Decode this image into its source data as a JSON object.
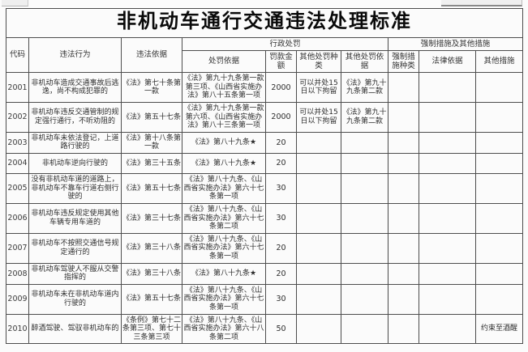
{
  "title": "非机动车通行交通违法处理标准",
  "header": {
    "code": "代码",
    "violation": "违法行为",
    "violation_basis": "违法依据",
    "admin_penalty_group": "行政处罚",
    "enforcement_group": "强制措施及其他措施",
    "penalty_basis": "处罚依据",
    "fine_amount": "罚款金额",
    "other_penalty_type": "其他处罚种类",
    "other_penalty_basis": "其他处罚依据",
    "enforcement_type": "强制措施种类",
    "legal_basis": "法律依据",
    "other_measures": "其他措施"
  },
  "rows": [
    {
      "code": "2001",
      "violation": "非机动车造成交通事故后逃逸，尚不构成犯罪的",
      "violation_basis": "《法》第七十条第一款",
      "penalty_basis": "《法》第九十九条第一款第三项、《山西省实施办法》第八十五条第一项",
      "fine": "2000",
      "other_penalty_type": "可以并处15日以下拘留",
      "other_penalty_basis": "《法》第九十九条第二款",
      "enforcement_type": "",
      "legal_basis": "",
      "other_measures": ""
    },
    {
      "code": "2002",
      "violation": "非机动车违反交通管制的规定强行通行，不听劝阻的",
      "violation_basis": "《法》第五十七条",
      "penalty_basis": "《法》第九十九条第一款第六项、《山西省实施办法》第八十三条第一项",
      "fine": "2000",
      "other_penalty_type": "可以并处15日以下拘留",
      "other_penalty_basis": "《法》第九十九条第二款",
      "enforcement_type": "",
      "legal_basis": "",
      "other_measures": ""
    },
    {
      "code": "2003",
      "violation": "非机动车未依法登记，上道路行驶的",
      "violation_basis": "《法》第十八条第一款",
      "penalty_basis": "《法》第八十九条★",
      "fine": "20",
      "other_penalty_type": "",
      "other_penalty_basis": "",
      "enforcement_type": "",
      "legal_basis": "",
      "other_measures": ""
    },
    {
      "code": "2004",
      "violation": "非机动车逆向行驶的",
      "violation_basis": "《法》第三十五条",
      "penalty_basis": "《法》第八十九条★",
      "fine": "20",
      "other_penalty_type": "",
      "other_penalty_basis": "",
      "enforcement_type": "",
      "legal_basis": "",
      "other_measures": ""
    },
    {
      "code": "2005",
      "violation": "没有非机动车道的道路上，非机动车不靠车行道右侧行驶的",
      "violation_basis": "《法》第五十七条",
      "penalty_basis": "《法》第八十九条、《山西省实施办法》第六十七条第一项",
      "fine": "30",
      "other_penalty_type": "",
      "other_penalty_basis": "",
      "enforcement_type": "",
      "legal_basis": "",
      "other_measures": ""
    },
    {
      "code": "2006",
      "violation": "非机动车违反规定使用其他车辆专用车道的",
      "violation_basis": "《法》第三十七条",
      "penalty_basis": "《法》第八十九条、《山西省实施办法》第六十七条第二项",
      "fine": "30",
      "other_penalty_type": "",
      "other_penalty_basis": "",
      "enforcement_type": "",
      "legal_basis": "",
      "other_measures": ""
    },
    {
      "code": "2007",
      "violation": "非机动车不按照交通信号规定通行的",
      "violation_basis": "《法》第三十八条",
      "penalty_basis": "《法》第八十九条、《山西省实施办法》第六十七条第一项",
      "fine": "20",
      "other_penalty_type": "",
      "other_penalty_basis": "",
      "enforcement_type": "",
      "legal_basis": "",
      "other_measures": ""
    },
    {
      "code": "2008",
      "violation": "非机动车驾驶人不服从交警指挥的",
      "violation_basis": "《法》第三十八条",
      "penalty_basis": "《法》第八十九条★",
      "fine": "20",
      "other_penalty_type": "",
      "other_penalty_basis": "",
      "enforcement_type": "",
      "legal_basis": "",
      "other_measures": ""
    },
    {
      "code": "2009",
      "violation": "非机动车未在非机动车道内行驶的",
      "violation_basis": "《法》第五十七条",
      "penalty_basis": "《法》第八十九条、《山西省实施办法》第六十七条第一项",
      "fine": "30",
      "other_penalty_type": "",
      "other_penalty_basis": "",
      "enforcement_type": "",
      "legal_basis": "",
      "other_measures": ""
    },
    {
      "code": "2010",
      "violation": "醉酒驾驶、驾驭非机动车的",
      "violation_basis": "《条例》第七十二条第三项、第七十三条第三项",
      "penalty_basis": "《法》第八十九条、《山西省实施办法》第六十八条第二项",
      "fine": "50",
      "other_penalty_type": "",
      "other_penalty_basis": "",
      "enforcement_type": "",
      "legal_basis": "",
      "other_measures": "约束至酒醒"
    }
  ]
}
